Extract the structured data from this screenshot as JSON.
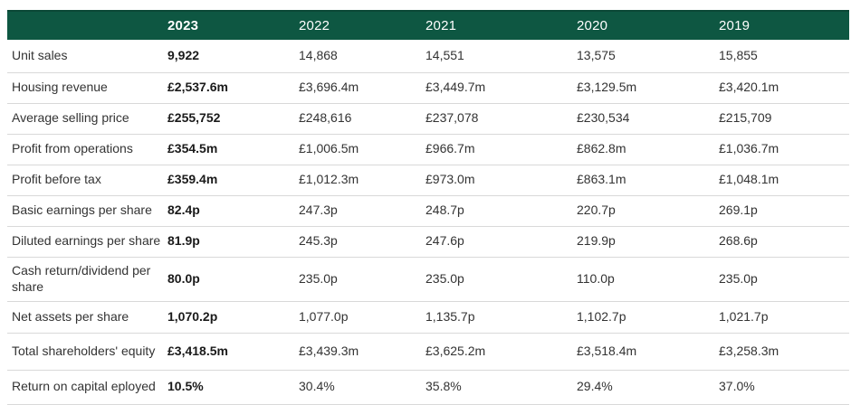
{
  "table": {
    "title_semantic": "five-year-financial-highlights",
    "header": {
      "label_column": "",
      "years": [
        "2023",
        "2022",
        "2021",
        "2020",
        "2019"
      ]
    },
    "rows": [
      {
        "label": "Unit sales",
        "values": [
          "9,922",
          "14,868",
          "14,551",
          "13,575",
          "15,855"
        ]
      },
      {
        "label": "Housing revenue",
        "values": [
          "£2,537.6m",
          "£3,696.4m",
          "£3,449.7m",
          "£3,129.5m",
          "£3,420.1m"
        ]
      },
      {
        "label": "Average selling price",
        "values": [
          "£255,752",
          "£248,616",
          "£237,078",
          "£230,534",
          "£215,709"
        ]
      },
      {
        "label": "Profit from operations",
        "values": [
          "£354.5m",
          "£1,006.5m",
          "£966.7m",
          "£862.8m",
          "£1,036.7m"
        ]
      },
      {
        "label": "Profit before tax",
        "values": [
          "£359.4m",
          "£1,012.3m",
          "£973.0m",
          "£863.1m",
          "£1,048.1m"
        ]
      },
      {
        "label": "Basic earnings per share",
        "values": [
          "82.4p",
          "247.3p",
          "248.7p",
          "220.7p",
          "269.1p"
        ]
      },
      {
        "label": "Diluted earnings per share",
        "values": [
          "81.9p",
          "245.3p",
          "247.6p",
          "219.9p",
          "268.6p"
        ]
      },
      {
        "label": "Cash return/dividend per share",
        "values": [
          "80.0p",
          "235.0p",
          "235.0p",
          "110.0p",
          "235.0p"
        ]
      },
      {
        "label": "Net assets per share",
        "values": [
          "1,070.2p",
          "1,077.0p",
          "1,135.7p",
          "1,102.7p",
          "1,021.7p"
        ]
      },
      {
        "label": "Total shareholders' equity",
        "values": [
          "£3,418.5m",
          "£3,439.3m",
          "£3,625.2m",
          "£3,518.4m",
          "£3,258.3m"
        ]
      },
      {
        "label": "Return on capital eployed",
        "values": [
          "10.5%",
          "30.4%",
          "35.8%",
          "29.4%",
          "37.0%"
        ]
      }
    ],
    "colors": {
      "header_bg": "#0E5742",
      "header_border_top": "#0B4836",
      "header_text": "#FFFFFF",
      "row_divider": "#D9D9D9",
      "body_text": "#333333",
      "bold_2023_text": "#1A1A1A",
      "page_bg": "#FFFFFF"
    }
  }
}
